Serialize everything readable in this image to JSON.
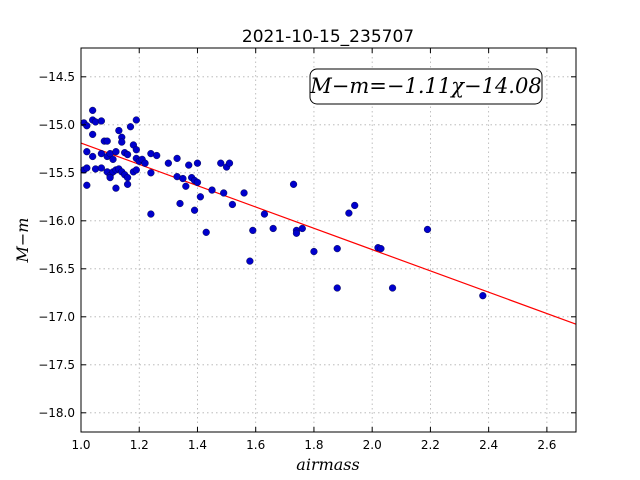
{
  "chart_data": {
    "type": "scatter",
    "title": "2021-10-15_235707",
    "xlabel": "airmass",
    "ylabel": "M−m",
    "xlim": [
      1.0,
      2.7
    ],
    "ylim": [
      -18.2,
      -14.2
    ],
    "y_inverted": false,
    "xticks": [
      1.0,
      1.2,
      1.4,
      1.6,
      1.8,
      2.0,
      2.2,
      2.4,
      2.6
    ],
    "xtick_labels": [
      "1.0",
      "1.2",
      "1.4",
      "1.6",
      "1.8",
      "2.0",
      "2.2",
      "2.4",
      "2.6"
    ],
    "yticks": [
      -14.5,
      -15.0,
      -15.5,
      -16.0,
      -16.5,
      -17.0,
      -17.5,
      -18.0
    ],
    "ytick_labels": [
      "−14.5",
      "−15.0",
      "−15.5",
      "−16.0",
      "−16.5",
      "−17.0",
      "−17.5",
      "−18.0"
    ],
    "grid": true,
    "annotation": "M−m=−1.11χ−14.08",
    "annotation_position": "top-right",
    "fit_line": {
      "slope": -1.11,
      "intercept": -14.08,
      "color": "#ff0000"
    },
    "point_color": "#0000cc",
    "points": [
      [
        1.01,
        -14.98
      ],
      [
        1.02,
        -15.01
      ],
      [
        1.04,
        -14.95
      ],
      [
        1.04,
        -14.85
      ],
      [
        1.05,
        -14.97
      ],
      [
        1.07,
        -14.96
      ],
      [
        1.04,
        -15.1
      ],
      [
        1.02,
        -15.28
      ],
      [
        1.04,
        -15.33
      ],
      [
        1.08,
        -15.17
      ],
      [
        1.09,
        -15.17
      ],
      [
        1.07,
        -15.3
      ],
      [
        1.09,
        -15.33
      ],
      [
        1.1,
        -15.3
      ],
      [
        1.11,
        -15.36
      ],
      [
        1.12,
        -15.28
      ],
      [
        1.13,
        -15.06
      ],
      [
        1.14,
        -15.13
      ],
      [
        1.14,
        -15.18
      ],
      [
        1.15,
        -15.29
      ],
      [
        1.16,
        -15.31
      ],
      [
        1.17,
        -15.02
      ],
      [
        1.18,
        -15.21
      ],
      [
        1.19,
        -15.26
      ],
      [
        1.19,
        -14.95
      ],
      [
        1.19,
        -15.35
      ],
      [
        1.2,
        -15.38
      ],
      [
        1.21,
        -15.36
      ],
      [
        1.22,
        -15.4
      ],
      [
        1.01,
        -15.47
      ],
      [
        1.02,
        -15.45
      ],
      [
        1.05,
        -15.46
      ],
      [
        1.07,
        -15.45
      ],
      [
        1.09,
        -15.49
      ],
      [
        1.1,
        -15.53
      ],
      [
        1.11,
        -15.49
      ],
      [
        1.12,
        -15.47
      ],
      [
        1.13,
        -15.46
      ],
      [
        1.14,
        -15.49
      ],
      [
        1.15,
        -15.52
      ],
      [
        1.16,
        -15.55
      ],
      [
        1.16,
        -15.62
      ],
      [
        1.18,
        -15.49
      ],
      [
        1.19,
        -15.47
      ],
      [
        1.02,
        -15.63
      ],
      [
        1.1,
        -15.55
      ],
      [
        1.12,
        -15.66
      ],
      [
        1.24,
        -15.3
      ],
      [
        1.24,
        -15.5
      ],
      [
        1.26,
        -15.32
      ],
      [
        1.3,
        -15.4
      ],
      [
        1.33,
        -15.35
      ],
      [
        1.33,
        -15.54
      ],
      [
        1.35,
        -15.56
      ],
      [
        1.36,
        -15.64
      ],
      [
        1.37,
        -15.42
      ],
      [
        1.38,
        -15.55
      ],
      [
        1.39,
        -15.58
      ],
      [
        1.4,
        -15.4
      ],
      [
        1.4,
        -15.6
      ],
      [
        1.41,
        -15.75
      ],
      [
        1.45,
        -15.68
      ],
      [
        1.48,
        -15.4
      ],
      [
        1.49,
        -15.71
      ],
      [
        1.5,
        -15.44
      ],
      [
        1.51,
        -15.4
      ],
      [
        1.52,
        -15.83
      ],
      [
        1.56,
        -15.71
      ],
      [
        1.24,
        -15.93
      ],
      [
        1.34,
        -15.82
      ],
      [
        1.39,
        -15.89
      ],
      [
        1.43,
        -16.12
      ],
      [
        1.58,
        -16.42
      ],
      [
        1.59,
        -16.1
      ],
      [
        1.63,
        -15.93
      ],
      [
        1.66,
        -16.08
      ],
      [
        1.73,
        -15.62
      ],
      [
        1.74,
        -16.1
      ],
      [
        1.74,
        -16.13
      ],
      [
        1.76,
        -16.08
      ],
      [
        1.8,
        -16.32
      ],
      [
        1.88,
        -16.29
      ],
      [
        1.92,
        -15.92
      ],
      [
        1.94,
        -15.84
      ],
      [
        1.88,
        -16.7
      ],
      [
        2.02,
        -16.28
      ],
      [
        2.03,
        -16.29
      ],
      [
        2.07,
        -16.7
      ],
      [
        2.19,
        -16.09
      ],
      [
        2.38,
        -16.78
      ]
    ]
  }
}
